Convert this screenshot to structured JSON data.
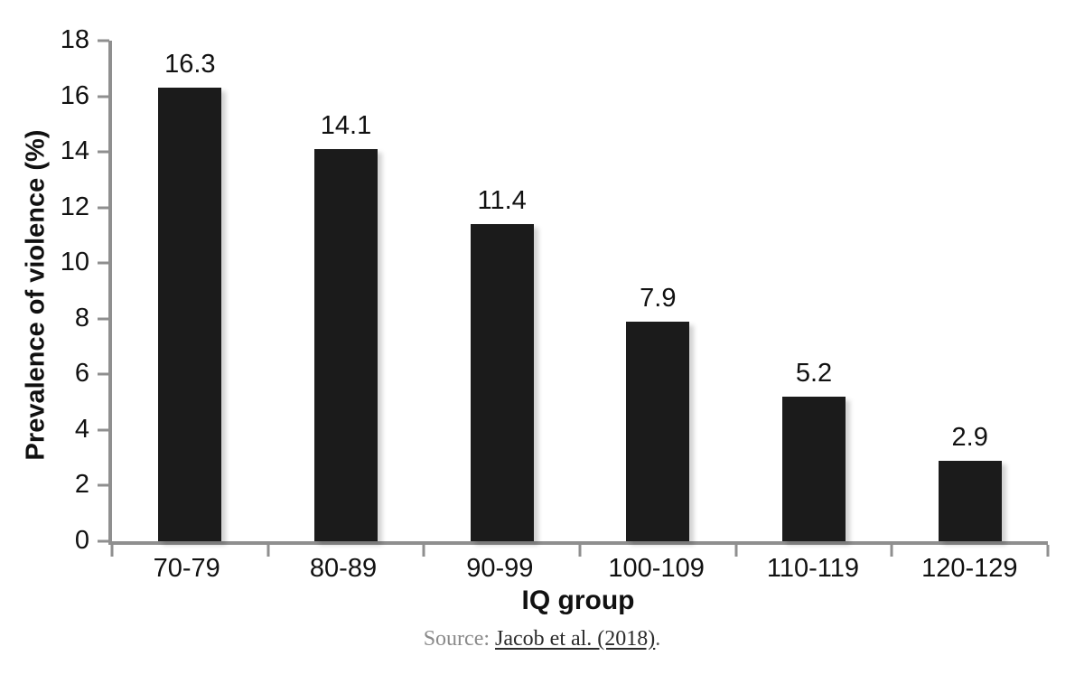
{
  "chart_data": {
    "type": "bar",
    "categories": [
      "70-79",
      "80-89",
      "90-99",
      "100-109",
      "110-119",
      "120-129"
    ],
    "values": [
      16.3,
      14.1,
      11.4,
      7.9,
      5.2,
      2.9
    ],
    "value_labels": [
      "16.3",
      "14.1",
      "11.4",
      "7.9",
      "5.2",
      "2.9"
    ],
    "title": "",
    "xlabel": "IQ group",
    "ylabel": "Prevalence of violence (%)",
    "ylim": [
      0,
      18
    ],
    "yticks": [
      0,
      2,
      4,
      6,
      8,
      10,
      12,
      14,
      16,
      18
    ],
    "grid": false,
    "legend": "none",
    "bar_color": "#1b1b1b",
    "axis_color": "#8f8f8f"
  },
  "source": {
    "prefix": "Source: ",
    "link_text": "Jacob et al. (2018)",
    "suffix": "."
  }
}
